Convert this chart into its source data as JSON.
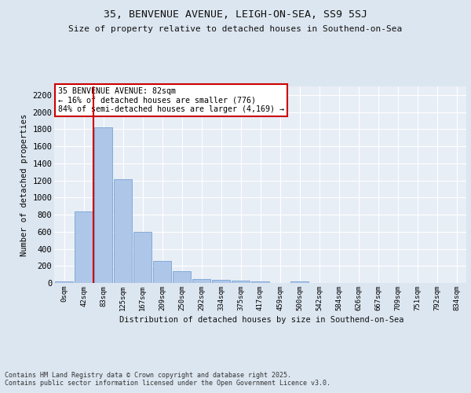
{
  "title1": "35, BENVENUE AVENUE, LEIGH-ON-SEA, SS9 5SJ",
  "title2": "Size of property relative to detached houses in Southend-on-Sea",
  "xlabel": "Distribution of detached houses by size in Southend-on-Sea",
  "ylabel": "Number of detached properties",
  "bar_labels": [
    "0sqm",
    "42sqm",
    "83sqm",
    "125sqm",
    "167sqm",
    "209sqm",
    "250sqm",
    "292sqm",
    "334sqm",
    "375sqm",
    "417sqm",
    "459sqm",
    "500sqm",
    "542sqm",
    "584sqm",
    "626sqm",
    "667sqm",
    "709sqm",
    "751sqm",
    "792sqm",
    "834sqm"
  ],
  "bar_values": [
    20,
    840,
    1820,
    1210,
    600,
    255,
    140,
    45,
    38,
    28,
    15,
    0,
    15,
    0,
    0,
    0,
    0,
    0,
    0,
    0,
    0
  ],
  "bar_color": "#aec6e8",
  "bar_edge_color": "#6699cc",
  "vline_color": "#cc0000",
  "annotation_text": "35 BENVENUE AVENUE: 82sqm\n← 16% of detached houses are smaller (776)\n84% of semi-detached houses are larger (4,169) →",
  "annotation_box_color": "#ffffff",
  "annotation_box_edge": "#cc0000",
  "footer": "Contains HM Land Registry data © Crown copyright and database right 2025.\nContains public sector information licensed under the Open Government Licence v3.0.",
  "bg_color": "#dce6f0",
  "plot_bg_color": "#e8eef6",
  "grid_color": "#ffffff",
  "ylim": [
    0,
    2300
  ],
  "yticks": [
    0,
    200,
    400,
    600,
    800,
    1000,
    1200,
    1400,
    1600,
    1800,
    2000,
    2200
  ]
}
